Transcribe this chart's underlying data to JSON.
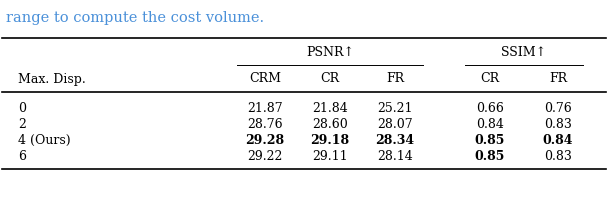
{
  "caption_text": "range to compute the cost volume.",
  "caption_color": "#4a90d9",
  "col_header_1": "Max. Disp.",
  "group1_name": "PSNR↑",
  "group2_name": "SSIM↑",
  "sub_headers": [
    "CRM",
    "CR",
    "FR",
    "CR",
    "FR"
  ],
  "rows": [
    {
      "label": "0",
      "vals": [
        "21.87",
        "21.84",
        "25.21",
        "0.66",
        "0.76"
      ],
      "bold": [
        false,
        false,
        false,
        false,
        false
      ]
    },
    {
      "label": "2",
      "vals": [
        "28.76",
        "28.60",
        "28.07",
        "0.84",
        "0.83"
      ],
      "bold": [
        false,
        false,
        false,
        false,
        false
      ]
    },
    {
      "label": "4 (Ours)",
      "vals": [
        "29.28",
        "29.18",
        "28.34",
        "0.85",
        "0.84"
      ],
      "bold": [
        true,
        true,
        true,
        true,
        true
      ]
    },
    {
      "label": "6",
      "vals": [
        "29.22",
        "29.11",
        "28.14",
        "0.85",
        "0.83"
      ],
      "bold": [
        false,
        false,
        false,
        true,
        false
      ]
    }
  ],
  "background_color": "#ffffff",
  "figsize": [
    6.08,
    2.0
  ],
  "dpi": 100
}
